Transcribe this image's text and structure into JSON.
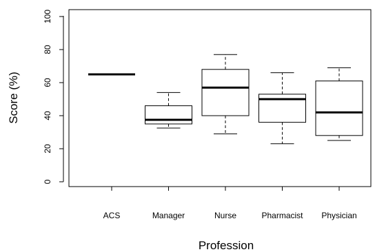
{
  "chart_data": {
    "type": "boxplot",
    "xlabel": "Profession",
    "ylabel": "Score (%)",
    "ylim": [
      -2,
      102
    ],
    "yticks": [
      0,
      20,
      40,
      60,
      80,
      100
    ],
    "categories": [
      "ACS",
      "Manager",
      "Nurse",
      "Pharmacist",
      "Physician"
    ],
    "boxes": [
      {
        "category": "ACS",
        "whisker_low": 65,
        "q1": 65,
        "median": 65,
        "q3": 65,
        "whisker_high": 65
      },
      {
        "category": "Manager",
        "whisker_low": 32.5,
        "q1": 35,
        "median": 37.5,
        "q3": 46,
        "whisker_high": 54
      },
      {
        "category": "Nurse",
        "whisker_low": 29,
        "q1": 40,
        "median": 57,
        "q3": 68,
        "whisker_high": 77
      },
      {
        "category": "Pharmacist",
        "whisker_low": 23,
        "q1": 36,
        "median": 50,
        "q3": 53,
        "whisker_high": 66
      },
      {
        "category": "Physician",
        "whisker_low": 25,
        "q1": 28,
        "median": 42,
        "q3": 61,
        "whisker_high": 69
      }
    ],
    "grid": false,
    "legend": "none"
  }
}
